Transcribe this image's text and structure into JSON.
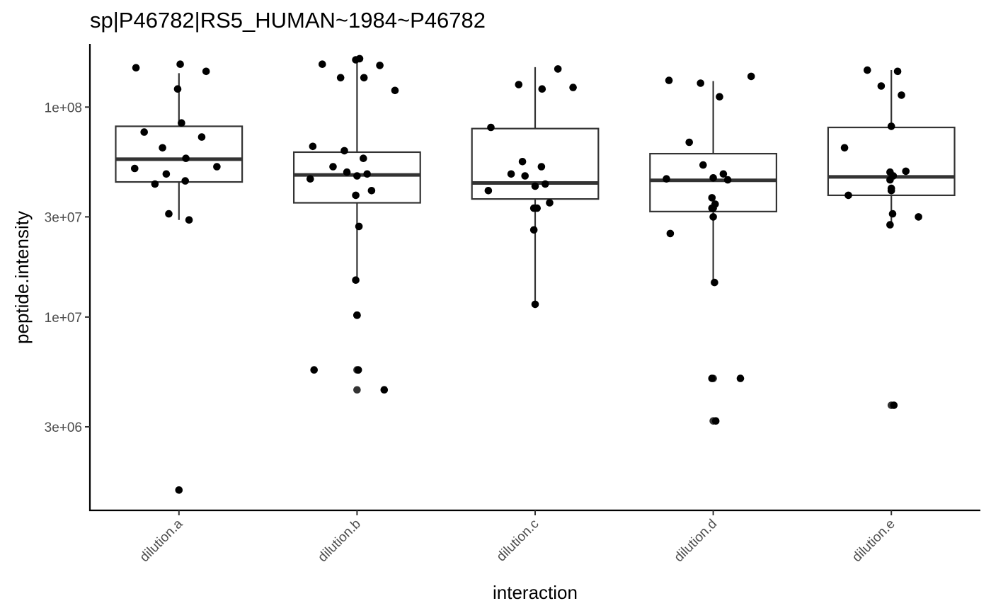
{
  "chart_data": {
    "type": "box",
    "title": "sp|P46782|RS5_HUMAN~1984~P46782",
    "xlabel": "interaction",
    "ylabel": "peptide.intensity",
    "y_scale": "log10",
    "ylim": [
      1200000,
      200000000
    ],
    "y_ticks": [
      {
        "value": 3000000,
        "label": "3e+06"
      },
      {
        "value": 10000000,
        "label": "1e+07"
      },
      {
        "value": 30000000,
        "label": "3e+07"
      },
      {
        "value": 100000000,
        "label": "1e+08"
      }
    ],
    "categories": [
      "dilution.a",
      "dilution.b",
      "dilution.c",
      "dilution.d",
      "dilution.e"
    ],
    "boxes": [
      {
        "category": "dilution.a",
        "whisker_low": 29000000,
        "q1": 44000000,
        "median": 56500000,
        "q3": 81000000,
        "whisker_high": 145000000,
        "outliers": []
      },
      {
        "category": "dilution.b",
        "whisker_low": 15000000,
        "q1": 35000000,
        "median": 47500000,
        "q3": 61000000,
        "whisker_high": 170000000,
        "outliers": [
          10200000,
          5600000,
          4500000
        ]
      },
      {
        "category": "dilution.c",
        "whisker_low": 11500000,
        "q1": 36500000,
        "median": 43500000,
        "q3": 79000000,
        "whisker_high": 155000000,
        "outliers": []
      },
      {
        "category": "dilution.d",
        "whisker_low": 14600000,
        "q1": 31800000,
        "median": 44800000,
        "q3": 60000000,
        "whisker_high": 133000000,
        "outliers": [
          5100000,
          3200000
        ]
      },
      {
        "category": "dilution.e",
        "whisker_low": 27000000,
        "q1": 38000000,
        "median": 46500000,
        "q3": 80000000,
        "whisker_high": 150000000,
        "outliers": [
          3800000
        ]
      }
    ],
    "points": [
      {
        "category": "dilution.a",
        "y": [
          154000000,
          160000000,
          148000000,
          122000000,
          84000000,
          76000000,
          72000000,
          64000000,
          57000000,
          52000000,
          51000000,
          48000000,
          44500000,
          43000000,
          31000000,
          29000000,
          1500000
        ]
      },
      {
        "category": "dilution.b",
        "y": [
          168000000,
          170000000,
          160000000,
          158000000,
          138000000,
          138000000,
          120000000,
          65000000,
          62000000,
          57000000,
          52000000,
          49000000,
          48000000,
          47000000,
          45500000,
          40000000,
          38000000,
          27000000,
          15000000,
          10200000,
          10200000,
          5600000,
          5600000,
          4500000
        ]
      },
      {
        "category": "dilution.c",
        "y": [
          152000000,
          128000000,
          122000000,
          124000000,
          80000000,
          55000000,
          52000000,
          48000000,
          47000000,
          43000000,
          42000000,
          40000000,
          35000000,
          33000000,
          33000000,
          26000000,
          11500000
        ]
      },
      {
        "category": "dilution.d",
        "y": [
          140000000,
          134000000,
          130000000,
          112000000,
          68000000,
          53000000,
          48000000,
          46000000,
          45500000,
          45000000,
          37000000,
          34500000,
          33000000,
          33000000,
          30000000,
          25000000,
          14600000,
          5100000,
          5100000,
          3200000
        ]
      },
      {
        "category": "dilution.e",
        "y": [
          148000000,
          150000000,
          126000000,
          114000000,
          81000000,
          64000000,
          49500000,
          49000000,
          47000000,
          45000000,
          41000000,
          40000000,
          38000000,
          31000000,
          30000000,
          27500000,
          3800000
        ]
      }
    ],
    "grid": false,
    "legend": "none"
  }
}
